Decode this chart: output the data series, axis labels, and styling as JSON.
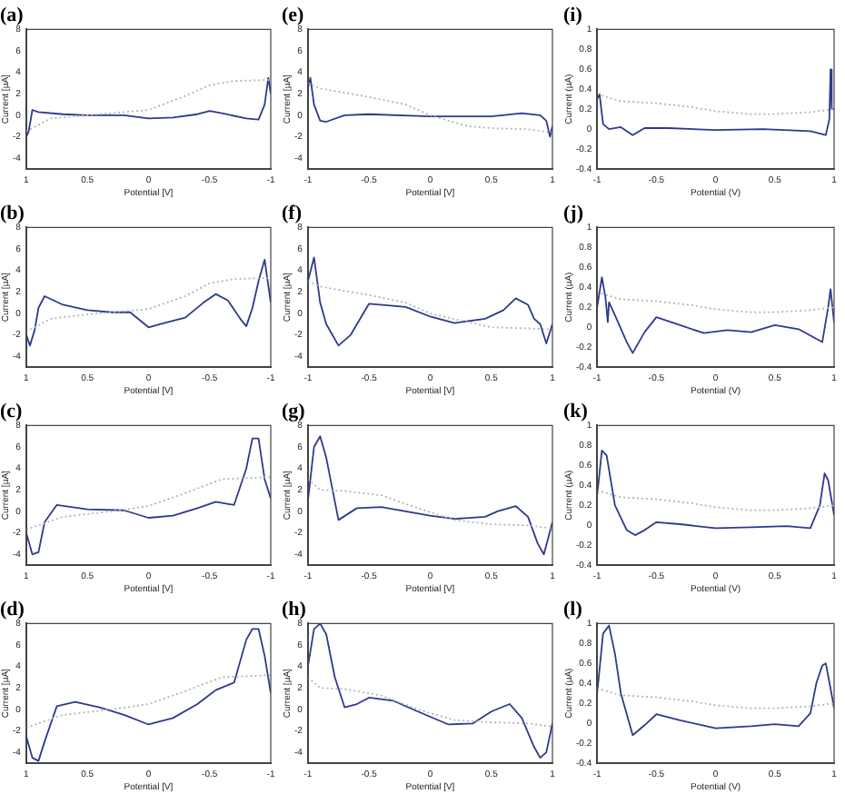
{
  "chart_data": [
    {
      "type": "line",
      "title": "(a)",
      "xlabel": "Potential [V]",
      "ylabel": "Current [µA]",
      "xlim": [
        1,
        -1
      ],
      "xticks": [
        1,
        0.5,
        0,
        -0.5,
        -1
      ],
      "ylim": [
        -5,
        8
      ],
      "yticks": [
        -4,
        -2,
        0,
        2,
        4,
        6,
        8
      ],
      "grid": false,
      "legend": false,
      "marker": "none",
      "series": [
        {
          "color": "#b4b4b4",
          "line_style": "dotted",
          "x": [
            1,
            0.8,
            0.5,
            0,
            -0.3,
            -0.5,
            -0.7,
            -1
          ],
          "values": [
            -1.5,
            -0.3,
            0,
            0.5,
            1.8,
            2.8,
            3.2,
            3.3
          ]
        },
        {
          "color": "#2e3a8c",
          "line_style": "solid",
          "x": [
            1,
            0.98,
            0.95,
            0.9,
            0.7,
            0.5,
            0.2,
            0,
            -0.2,
            -0.4,
            -0.5,
            -0.6,
            -0.8,
            -0.9,
            -0.95,
            -0.98,
            -1
          ],
          "values": [
            -2,
            -1.5,
            0.5,
            0.3,
            0.1,
            0,
            0,
            -0.3,
            -0.2,
            0.1,
            0.4,
            0.2,
            -0.3,
            -0.4,
            1,
            3.5,
            2
          ]
        }
      ]
    },
    {
      "type": "line",
      "title": "(e)",
      "xlabel": "Potential [V]",
      "ylabel": "Current [µA]",
      "xlim": [
        -1,
        1
      ],
      "xticks": [
        -1,
        -0.5,
        0,
        0.5,
        1
      ],
      "ylim": [
        -5,
        8
      ],
      "yticks": [
        -4,
        -2,
        0,
        2,
        4,
        6,
        8
      ],
      "grid": false,
      "legend": false,
      "marker": "none",
      "series": [
        {
          "color": "#b4b4b4",
          "line_style": "dotted",
          "x": [
            -1,
            -0.9,
            -0.5,
            -0.2,
            0,
            0.3,
            0.5,
            0.8,
            1
          ],
          "values": [
            3,
            2.5,
            1.7,
            1,
            0,
            -1,
            -1.2,
            -1.3,
            -1.6
          ]
        },
        {
          "color": "#2e3a8c",
          "line_style": "solid",
          "x": [
            -1,
            -0.98,
            -0.95,
            -0.9,
            -0.85,
            -0.7,
            -0.5,
            0,
            0.5,
            0.75,
            0.9,
            0.95,
            0.98,
            1
          ],
          "values": [
            2.5,
            3.5,
            1,
            -0.5,
            -0.6,
            0,
            0.1,
            -0.1,
            -0.1,
            0.2,
            0,
            -0.5,
            -2,
            -1
          ]
        }
      ]
    },
    {
      "type": "line",
      "title": "(i)",
      "xlabel": "Potential (V)",
      "ylabel": "Current (µA)",
      "xlim": [
        -1,
        1
      ],
      "xticks": [
        -1,
        -0.5,
        0,
        0.5,
        1
      ],
      "ylim": [
        -0.4,
        1
      ],
      "yticks": [
        -0.4,
        -0.2,
        0,
        0.2,
        0.4,
        0.6,
        0.8,
        1
      ],
      "grid": false,
      "legend": false,
      "marker": "none",
      "series": [
        {
          "color": "#b4b4b4",
          "line_style": "dotted",
          "x": [
            -1,
            -0.8,
            -0.5,
            -0.2,
            0,
            0.3,
            0.5,
            0.8,
            1
          ],
          "values": [
            0.35,
            0.28,
            0.26,
            0.22,
            0.18,
            0.15,
            0.15,
            0.17,
            0.2
          ]
        },
        {
          "color": "#2e3a8c",
          "line_style": "solid",
          "x": [
            -1,
            -0.98,
            -0.95,
            -0.9,
            -0.8,
            -0.7,
            -0.6,
            -0.4,
            0,
            0.4,
            0.8,
            0.93,
            0.96,
            0.97,
            0.98,
            1
          ],
          "values": [
            0.3,
            0.35,
            0.05,
            0,
            0.02,
            -0.06,
            0.01,
            0.01,
            -0.01,
            0,
            -0.02,
            -0.06,
            0.1,
            0.6,
            0.2,
            0.2
          ]
        }
      ]
    },
    {
      "type": "line",
      "title": "(b)",
      "xlabel": "Potential [V]",
      "ylabel": "Current [µA]",
      "xlim": [
        1,
        -1
      ],
      "xticks": [
        1,
        0.5,
        0,
        -0.5,
        -1
      ],
      "ylim": [
        -5,
        8
      ],
      "yticks": [
        -4,
        -2,
        0,
        2,
        4,
        6,
        8
      ],
      "grid": false,
      "legend": false,
      "marker": "none",
      "series": [
        {
          "color": "#b4b4b4",
          "line_style": "dotted",
          "x": [
            1,
            0.8,
            0.5,
            0,
            -0.3,
            -0.5,
            -0.7,
            -1
          ],
          "values": [
            -1.7,
            -0.5,
            -0.1,
            0.4,
            1.6,
            2.8,
            3.2,
            3.3
          ]
        },
        {
          "color": "#2e3a8c",
          "line_style": "solid",
          "x": [
            1,
            0.97,
            0.93,
            0.9,
            0.85,
            0.7,
            0.5,
            0.3,
            0.15,
            0,
            -0.1,
            -0.3,
            -0.45,
            -0.55,
            -0.65,
            -0.75,
            -0.8,
            -0.85,
            -0.9,
            -0.95,
            -1
          ],
          "values": [
            -2,
            -3,
            -1.5,
            0.5,
            1.6,
            0.8,
            0.3,
            0.1,
            0.1,
            -1.3,
            -1,
            -0.4,
            1,
            1.8,
            1.2,
            -0.5,
            -1.2,
            0.5,
            3,
            5,
            1
          ]
        }
      ]
    },
    {
      "type": "line",
      "title": "(f)",
      "xlabel": "Potential [V]",
      "ylabel": "Current [µA]",
      "xlim": [
        -1,
        1
      ],
      "xticks": [
        -1,
        -0.5,
        0,
        0.5,
        1
      ],
      "ylim": [
        -5,
        8
      ],
      "yticks": [
        -4,
        -2,
        0,
        2,
        4,
        6,
        8
      ],
      "grid": false,
      "legend": false,
      "marker": "none",
      "series": [
        {
          "color": "#b4b4b4",
          "line_style": "dotted",
          "x": [
            -1,
            -0.9,
            -0.5,
            -0.2,
            0,
            0.3,
            0.5,
            0.8,
            1
          ],
          "values": [
            3,
            2.5,
            1.7,
            1,
            0,
            -0.8,
            -1.3,
            -1.4,
            -1.5
          ]
        },
        {
          "color": "#2e3a8c",
          "line_style": "solid",
          "x": [
            -1,
            -0.95,
            -0.9,
            -0.85,
            -0.75,
            -0.65,
            -0.5,
            -0.2,
            0,
            0.2,
            0.45,
            0.6,
            0.7,
            0.8,
            0.85,
            0.9,
            0.95,
            1
          ],
          "values": [
            3,
            5.2,
            1,
            -1,
            -3,
            -2,
            0.9,
            0.6,
            -0.3,
            -0.9,
            -0.5,
            0.3,
            1.4,
            0.8,
            -0.5,
            -1,
            -2.8,
            -1
          ]
        }
      ]
    },
    {
      "type": "line",
      "title": "(j)",
      "xlabel": "Potential (V)",
      "ylabel": "Current (µA)",
      "xlim": [
        -1,
        1
      ],
      "xticks": [
        -1,
        -0.5,
        0,
        0.5,
        1
      ],
      "ylim": [
        -0.4,
        1
      ],
      "yticks": [
        -0.4,
        -0.2,
        0,
        0.2,
        0.4,
        0.6,
        0.8,
        1
      ],
      "grid": false,
      "legend": false,
      "marker": "none",
      "series": [
        {
          "color": "#b4b4b4",
          "line_style": "dotted",
          "x": [
            -1,
            -0.8,
            -0.5,
            -0.2,
            0,
            0.3,
            0.5,
            0.8,
            1
          ],
          "values": [
            0.35,
            0.28,
            0.26,
            0.22,
            0.18,
            0.15,
            0.15,
            0.17,
            0.2
          ]
        },
        {
          "color": "#2e3a8c",
          "line_style": "solid",
          "x": [
            -1,
            -0.96,
            -0.93,
            -0.91,
            -0.9,
            -0.85,
            -0.75,
            -0.7,
            -0.6,
            -0.5,
            -0.3,
            -0.1,
            0.1,
            0.3,
            0.5,
            0.7,
            0.9,
            0.95,
            0.97,
            1
          ],
          "values": [
            0.2,
            0.5,
            0.3,
            0.05,
            0.25,
            0.12,
            -0.15,
            -0.26,
            -0.05,
            0.1,
            0.02,
            -0.06,
            -0.03,
            -0.05,
            0.02,
            -0.02,
            -0.15,
            0.2,
            0.38,
            0.05
          ]
        }
      ]
    },
    {
      "type": "line",
      "title": "(c)",
      "xlabel": "Potential [V]",
      "ylabel": "Current [µA]",
      "xlim": [
        1,
        -1
      ],
      "xticks": [
        1,
        0.5,
        0,
        -0.5,
        -1
      ],
      "ylim": [
        -5,
        8
      ],
      "yticks": [
        -4,
        -2,
        0,
        2,
        4,
        6,
        8
      ],
      "grid": false,
      "legend": false,
      "marker": "none",
      "series": [
        {
          "color": "#b4b4b4",
          "line_style": "dotted",
          "x": [
            1,
            0.7,
            0.3,
            0,
            -0.3,
            -0.6,
            -1
          ],
          "values": [
            -1.7,
            -0.5,
            0,
            0.5,
            1.7,
            3,
            3.2
          ]
        },
        {
          "color": "#2e3a8c",
          "line_style": "solid",
          "x": [
            1,
            0.95,
            0.9,
            0.85,
            0.75,
            0.5,
            0.2,
            0,
            -0.2,
            -0.4,
            -0.55,
            -0.7,
            -0.8,
            -0.85,
            -0.9,
            -0.95,
            -1
          ],
          "values": [
            -2,
            -4,
            -3.8,
            -1,
            0.6,
            0.2,
            0.1,
            -0.6,
            -0.4,
            0.3,
            0.9,
            0.6,
            4,
            6.8,
            6.8,
            3,
            1.2
          ]
        }
      ]
    },
    {
      "type": "line",
      "title": "(g)",
      "xlabel": "Potential [V]",
      "ylabel": "Current [µA]",
      "xlim": [
        -1,
        1
      ],
      "xticks": [
        -1,
        -0.5,
        0,
        0.5,
        1
      ],
      "ylim": [
        -5,
        8
      ],
      "yticks": [
        -4,
        -2,
        0,
        2,
        4,
        6,
        8
      ],
      "grid": false,
      "legend": false,
      "marker": "none",
      "series": [
        {
          "color": "#b4b4b4",
          "line_style": "dotted",
          "x": [
            -1,
            -0.9,
            -0.7,
            -0.4,
            -0.1,
            0.2,
            0.5,
            0.8,
            1
          ],
          "values": [
            3,
            2,
            1.9,
            1.5,
            0.3,
            -0.8,
            -1.2,
            -1.3,
            -1.6
          ]
        },
        {
          "color": "#2e3a8c",
          "line_style": "solid",
          "x": [
            -1,
            -0.95,
            -0.9,
            -0.85,
            -0.75,
            -0.6,
            -0.4,
            -0.2,
            0,
            0.2,
            0.45,
            0.55,
            0.7,
            0.8,
            0.88,
            0.93,
            1
          ],
          "values": [
            1,
            6,
            7,
            5,
            -0.8,
            0.3,
            0.4,
            0,
            -0.4,
            -0.7,
            -0.5,
            0,
            0.5,
            -0.5,
            -3,
            -4,
            -1
          ]
        }
      ]
    },
    {
      "type": "line",
      "title": "(k)",
      "xlabel": "Potential (V)",
      "ylabel": "Current (µA)",
      "xlim": [
        -1,
        1
      ],
      "xticks": [
        -1,
        -0.5,
        0,
        0.5,
        1
      ],
      "ylim": [
        -0.4,
        1
      ],
      "yticks": [
        -0.4,
        -0.2,
        0,
        0.2,
        0.4,
        0.6,
        0.8,
        1
      ],
      "grid": false,
      "legend": false,
      "marker": "none",
      "series": [
        {
          "color": "#b4b4b4",
          "line_style": "dotted",
          "x": [
            -1,
            -0.8,
            -0.5,
            -0.2,
            0,
            0.3,
            0.5,
            0.8,
            1
          ],
          "values": [
            0.35,
            0.28,
            0.26,
            0.22,
            0.18,
            0.15,
            0.15,
            0.17,
            0.2
          ]
        },
        {
          "color": "#2e3a8c",
          "line_style": "solid",
          "x": [
            -1,
            -0.96,
            -0.92,
            -0.85,
            -0.75,
            -0.68,
            -0.6,
            -0.5,
            -0.3,
            0,
            0.3,
            0.6,
            0.8,
            0.88,
            0.92,
            0.95,
            1
          ],
          "values": [
            0.3,
            0.75,
            0.7,
            0.2,
            -0.05,
            -0.1,
            -0.05,
            0.03,
            0.01,
            -0.03,
            -0.02,
            -0.01,
            -0.03,
            0.2,
            0.52,
            0.45,
            0.1
          ]
        }
      ]
    },
    {
      "type": "line",
      "title": "(d)",
      "xlabel": "Potential [V]",
      "ylabel": "Current [µA]",
      "xlim": [
        1,
        -1
      ],
      "xticks": [
        1,
        0.5,
        0,
        -0.5,
        -1
      ],
      "ylim": [
        -5,
        8
      ],
      "yticks": [
        -4,
        -2,
        0,
        2,
        4,
        6,
        8
      ],
      "grid": false,
      "legend": false,
      "marker": "none",
      "series": [
        {
          "color": "#b4b4b4",
          "line_style": "dotted",
          "x": [
            1,
            0.7,
            0.3,
            0,
            -0.3,
            -0.6,
            -1
          ],
          "values": [
            -1.7,
            -0.5,
            0,
            0.5,
            1.7,
            3,
            3.2
          ]
        },
        {
          "color": "#2e3a8c",
          "line_style": "solid",
          "x": [
            1,
            0.95,
            0.9,
            0.85,
            0.75,
            0.6,
            0.4,
            0.2,
            0,
            -0.2,
            -0.4,
            -0.55,
            -0.7,
            -0.8,
            -0.85,
            -0.9,
            -0.95,
            -1
          ],
          "values": [
            -2.5,
            -4.5,
            -4.8,
            -3,
            0.3,
            0.7,
            0.2,
            -0.5,
            -1.4,
            -0.8,
            0.5,
            1.8,
            2.5,
            6.5,
            7.5,
            7.5,
            5,
            1.5
          ]
        }
      ]
    },
    {
      "type": "line",
      "title": "(h)",
      "xlabel": "Potential [V]",
      "ylabel": "Current [µA]",
      "xlim": [
        -1,
        1
      ],
      "xticks": [
        -1,
        -0.5,
        0,
        0.5,
        1
      ],
      "ylim": [
        -5,
        8
      ],
      "yticks": [
        -4,
        -2,
        0,
        2,
        4,
        6,
        8
      ],
      "grid": false,
      "legend": false,
      "marker": "none",
      "series": [
        {
          "color": "#b4b4b4",
          "line_style": "dotted",
          "x": [
            -1,
            -0.9,
            -0.7,
            -0.4,
            -0.1,
            0.2,
            0.5,
            0.8,
            1
          ],
          "values": [
            3,
            2,
            1.9,
            1.3,
            0,
            -1,
            -1.2,
            -1.3,
            -1.6
          ]
        },
        {
          "color": "#2e3a8c",
          "line_style": "solid",
          "x": [
            -1,
            -0.95,
            -0.9,
            -0.85,
            -0.78,
            -0.7,
            -0.6,
            -0.5,
            -0.3,
            -0.1,
            0.15,
            0.35,
            0.5,
            0.65,
            0.75,
            0.85,
            0.9,
            0.95,
            1
          ],
          "values": [
            4,
            7.5,
            8,
            7,
            3,
            0.2,
            0.5,
            1.1,
            0.8,
            -0.2,
            -1.4,
            -1.3,
            -0.2,
            0.5,
            -0.8,
            -3.5,
            -4.5,
            -4,
            -1.3
          ]
        }
      ]
    },
    {
      "type": "line",
      "title": "(l)",
      "xlabel": "Potential (V)",
      "ylabel": "Current (µA)",
      "xlim": [
        -1,
        1
      ],
      "xticks": [
        -1,
        -0.5,
        0,
        0.5,
        1
      ],
      "ylim": [
        -0.4,
        1
      ],
      "yticks": [
        -0.4,
        -0.2,
        0,
        0.2,
        0.4,
        0.6,
        0.8,
        1
      ],
      "grid": false,
      "legend": false,
      "marker": "none",
      "series": [
        {
          "color": "#b4b4b4",
          "line_style": "dotted",
          "x": [
            -1,
            -0.8,
            -0.5,
            -0.2,
            0,
            0.3,
            0.5,
            0.8,
            1
          ],
          "values": [
            0.35,
            0.28,
            0.26,
            0.22,
            0.18,
            0.15,
            0.15,
            0.17,
            0.2
          ]
        },
        {
          "color": "#2e3a8c",
          "line_style": "solid",
          "x": [
            -1,
            -0.95,
            -0.9,
            -0.85,
            -0.8,
            -0.7,
            -0.6,
            -0.5,
            -0.3,
            0,
            0.3,
            0.5,
            0.7,
            0.8,
            0.85,
            0.9,
            0.93,
            0.97,
            1
          ],
          "values": [
            0.3,
            0.9,
            0.98,
            0.7,
            0.3,
            -0.12,
            -0.02,
            0.09,
            0.03,
            -0.05,
            -0.03,
            -0.01,
            -0.03,
            0.1,
            0.4,
            0.58,
            0.6,
            0.35,
            0.15
          ]
        }
      ]
    }
  ]
}
